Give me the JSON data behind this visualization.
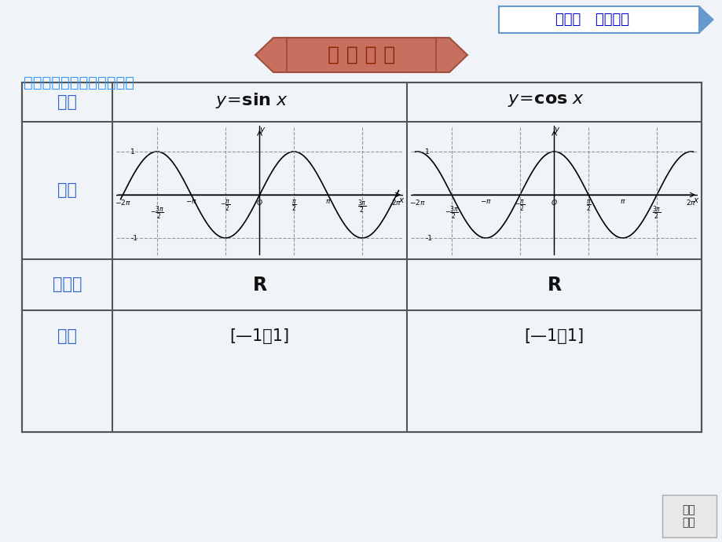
{
  "bg_color": "#f0f4f8",
  "title_banner_text": "新 知 初 探",
  "title_banner_bg": "#c87060",
  "title_banner_text_color": "#8B1A1A",
  "chapter_label": "第五章   三角函数",
  "chapter_label_color": "#0000CC",
  "chapter_box_color": "#6699CC",
  "section_title": "正弦函数、余弦函数的图象",
  "section_title_color": "#3399FF",
  "table_border_color": "#555555",
  "header_text_color": "#3366CC",
  "col1_header": "函数",
  "col2_header": "y＝sin x",
  "col3_header": "y＝cos x",
  "row2_label": "图象",
  "row3_label": "定义域",
  "row4_label": "值域",
  "row3_col2": "R",
  "row3_col3": "R",
  "row4_col2": "[—1，1]",
  "row4_col3": "[—1，1]",
  "nav_text": "栏目\n导引",
  "nav_bg": "#e8e8e8",
  "nav_border": "#aaaaaa"
}
